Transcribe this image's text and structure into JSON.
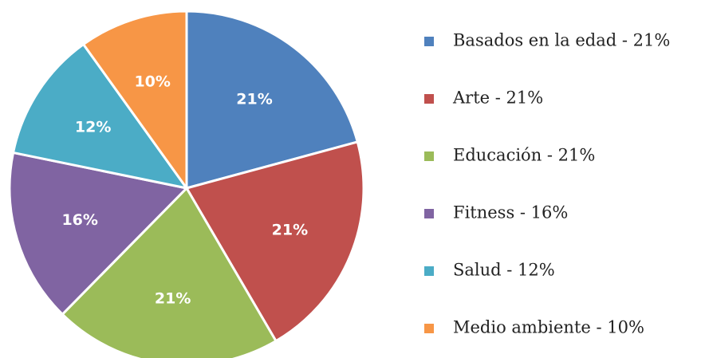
{
  "chart_data": {
    "type": "pie",
    "categories": [
      "Basados en la edad - 21%",
      "Arte - 21%",
      "Educación - 21%",
      "Fitness - 16%",
      "Salud - 12%",
      "Medio ambiente - 10%"
    ],
    "values": [
      21,
      21,
      21,
      16,
      12,
      10
    ],
    "value_labels": [
      "21%",
      "21%",
      "21%",
      "16%",
      "12%",
      "10%"
    ],
    "colors": [
      "#4f81bd",
      "#c0504d",
      "#9bbb59",
      "#8064a2",
      "#4bacc6",
      "#f79646"
    ],
    "legend": "right"
  }
}
